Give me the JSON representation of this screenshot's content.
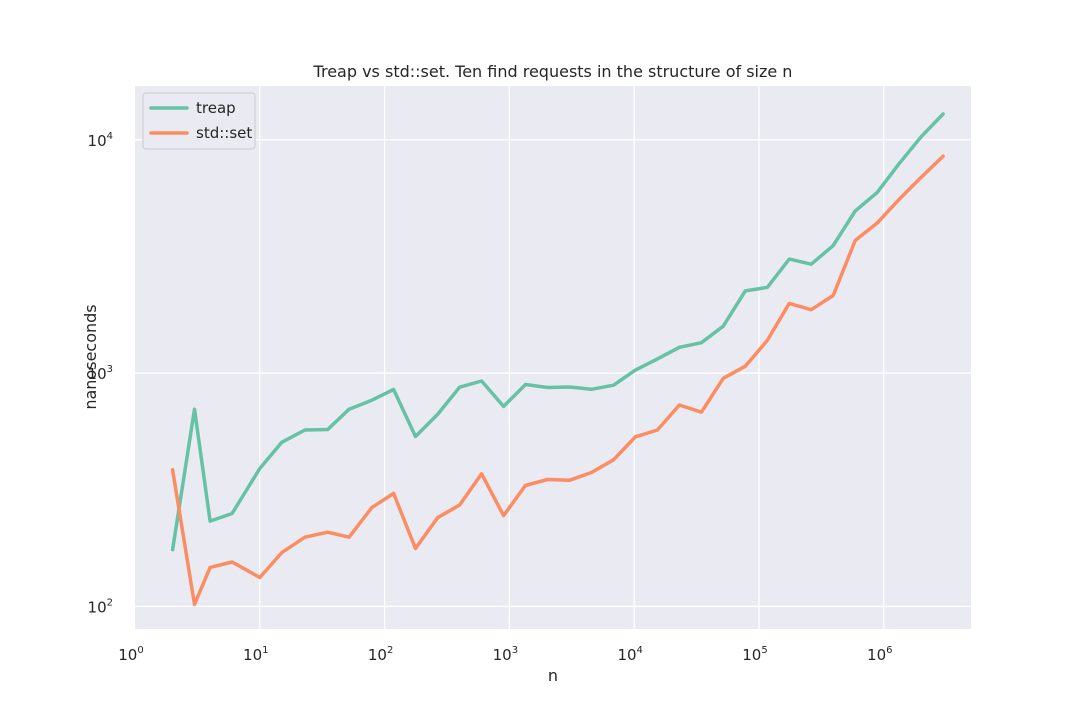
{
  "chart_data": {
    "type": "line",
    "title": "Treap vs std::set. Ten find requests in the structure of size n",
    "xlabel": "n",
    "ylabel": "nanoseconds",
    "xscale": "log",
    "yscale": "log",
    "xlim": [
      1,
      5000000
    ],
    "ylim": [
      80,
      17000
    ],
    "grid": true,
    "legend_position": "top-left",
    "x_ticks": [
      {
        "value": 1,
        "base": "10",
        "exp": "0"
      },
      {
        "value": 10,
        "base": "10",
        "exp": "1"
      },
      {
        "value": 100,
        "base": "10",
        "exp": "2"
      },
      {
        "value": 1000,
        "base": "10",
        "exp": "3"
      },
      {
        "value": 10000,
        "base": "10",
        "exp": "4"
      },
      {
        "value": 100000,
        "base": "10",
        "exp": "5"
      },
      {
        "value": 1000000,
        "base": "10",
        "exp": "6"
      }
    ],
    "y_ticks": [
      {
        "value": 100,
        "base": "10",
        "exp": "2"
      },
      {
        "value": 1000,
        "base": "10",
        "exp": "3"
      },
      {
        "value": 10000,
        "base": "10",
        "exp": "4"
      }
    ],
    "x": [
      2,
      3,
      4,
      6,
      10,
      15,
      23,
      35,
      52,
      79,
      118,
      177,
      266,
      399,
      599,
      898,
      1347,
      2021,
      3032,
      4548,
      6822,
      10233,
      15349,
      23024,
      34536,
      51805,
      77707,
      116561,
      174842,
      262263,
      393395,
      590092,
      885138,
      1327707,
      1991561,
      2987341
    ],
    "series": [
      {
        "name": "treap",
        "color": "#66c2a5",
        "values": [
          175,
          700,
          232,
          250,
          390,
          505,
          570,
          573,
          700,
          765,
          850,
          535,
          665,
          870,
          925,
          720,
          893,
          867,
          872,
          852,
          887,
          1030,
          1150,
          1290,
          1350,
          1590,
          2250,
          2330,
          3080,
          2930,
          3520,
          4950,
          5950,
          7900,
          10300,
          12900
        ]
      },
      {
        "name": "std::set",
        "color": "#fc8d62",
        "values": [
          385,
          102,
          147,
          155,
          133,
          170,
          198,
          208,
          198,
          265,
          305,
          177,
          240,
          272,
          370,
          245,
          330,
          350,
          347,
          375,
          425,
          533,
          570,
          730,
          680,
          950,
          1070,
          1380,
          1990,
          1870,
          2150,
          3700,
          4400,
          5550,
          6900,
          8500
        ]
      }
    ]
  }
}
